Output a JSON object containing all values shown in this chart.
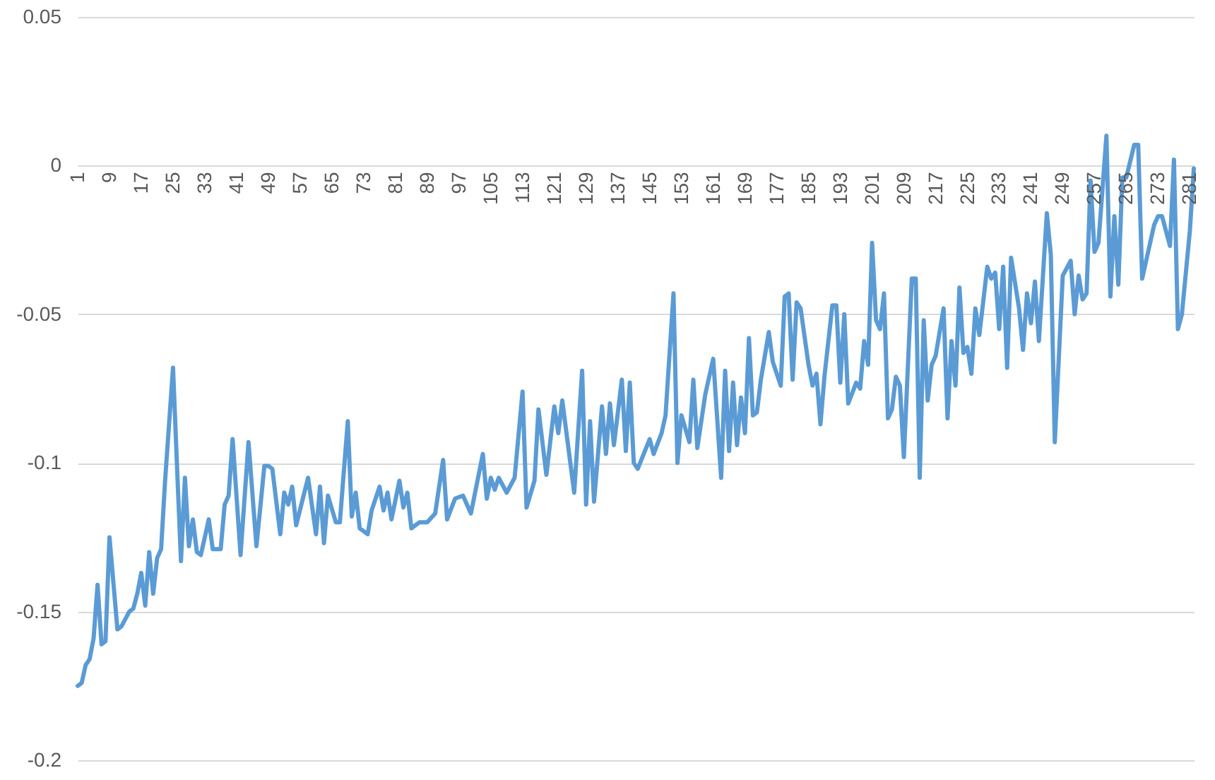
{
  "chart_data": {
    "type": "line",
    "grid": "y",
    "xlim": [
      1,
      282
    ],
    "xticks": [
      1,
      9,
      17,
      25,
      33,
      41,
      49,
      57,
      65,
      73,
      81,
      89,
      97,
      105,
      113,
      121,
      129,
      137,
      145,
      153,
      161,
      169,
      177,
      185,
      193,
      201,
      209,
      217,
      225,
      233,
      241,
      249,
      257,
      265,
      273,
      281
    ],
    "ylim": [
      -0.2,
      0.05
    ],
    "yticks": [
      -0.2,
      -0.15,
      -0.1,
      -0.05,
      0,
      0.05
    ],
    "x": [
      1,
      2,
      3,
      4,
      5,
      6,
      7,
      8,
      9,
      11,
      12,
      14,
      15,
      16,
      17,
      18,
      19,
      20,
      21,
      22,
      23,
      25,
      26,
      27,
      28,
      29,
      30,
      31,
      32,
      34,
      35,
      37,
      38,
      39,
      40,
      42,
      44,
      46,
      48,
      49,
      50,
      52,
      53,
      54,
      55,
      56,
      59,
      61,
      62,
      63,
      64,
      66,
      67,
      69,
      70,
      71,
      72,
      74,
      75,
      77,
      78,
      79,
      80,
      82,
      83,
      84,
      85,
      87,
      89,
      91,
      93,
      94,
      96,
      98,
      100,
      103,
      104,
      105,
      106,
      107,
      109,
      111,
      113,
      114,
      116,
      117,
      119,
      121,
      122,
      123,
      126,
      128,
      129,
      130,
      131,
      133,
      134,
      135,
      136,
      138,
      139,
      140,
      141,
      142,
      145,
      146,
      148,
      149,
      151,
      152,
      153,
      155,
      156,
      157,
      159,
      161,
      163,
      164,
      165,
      166,
      167,
      168,
      169,
      170,
      171,
      172,
      173,
      175,
      176,
      178,
      179,
      180,
      181,
      182,
      183,
      185,
      186,
      187,
      188,
      189,
      191,
      192,
      193,
      194,
      195,
      197,
      198,
      199,
      200,
      201,
      202,
      203,
      204,
      205,
      206,
      207,
      208,
      209,
      211,
      212,
      213,
      214,
      215,
      216,
      217,
      219,
      220,
      221,
      222,
      223,
      224,
      225,
      226,
      227,
      228,
      230,
      231,
      232,
      233,
      234,
      235,
      236,
      238,
      239,
      240,
      241,
      242,
      243,
      245,
      246,
      247,
      249,
      251,
      252,
      253,
      254,
      255,
      256,
      257,
      258,
      260,
      261,
      262,
      263,
      264,
      265,
      267,
      268,
      269,
      272,
      273,
      274,
      276,
      277,
      278,
      279,
      281,
      282
    ],
    "series": [
      {
        "color": "#5b9bd5",
        "values": [
          -0.175,
          -0.174,
          -0.168,
          -0.166,
          -0.159,
          -0.141,
          -0.161,
          -0.16,
          -0.125,
          -0.156,
          -0.155,
          -0.15,
          -0.149,
          -0.144,
          -0.137,
          -0.148,
          -0.13,
          -0.144,
          -0.132,
          -0.129,
          -0.106,
          -0.068,
          -0.101,
          -0.133,
          -0.105,
          -0.128,
          -0.119,
          -0.13,
          -0.131,
          -0.119,
          -0.129,
          -0.129,
          -0.114,
          -0.111,
          -0.092,
          -0.131,
          -0.093,
          -0.128,
          -0.101,
          -0.101,
          -0.102,
          -0.124,
          -0.11,
          -0.114,
          -0.108,
          -0.121,
          -0.105,
          -0.124,
          -0.108,
          -0.127,
          -0.111,
          -0.12,
          -0.12,
          -0.086,
          -0.118,
          -0.11,
          -0.122,
          -0.124,
          -0.116,
          -0.108,
          -0.116,
          -0.11,
          -0.119,
          -0.106,
          -0.115,
          -0.11,
          -0.122,
          -0.12,
          -0.12,
          -0.117,
          -0.099,
          -0.119,
          -0.112,
          -0.111,
          -0.117,
          -0.097,
          -0.112,
          -0.105,
          -0.109,
          -0.105,
          -0.11,
          -0.105,
          -0.076,
          -0.115,
          -0.106,
          -0.082,
          -0.104,
          -0.081,
          -0.09,
          -0.079,
          -0.11,
          -0.069,
          -0.114,
          -0.086,
          -0.113,
          -0.081,
          -0.097,
          -0.08,
          -0.094,
          -0.072,
          -0.096,
          -0.073,
          -0.1,
          -0.102,
          -0.092,
          -0.097,
          -0.09,
          -0.084,
          -0.043,
          -0.1,
          -0.084,
          -0.093,
          -0.072,
          -0.095,
          -0.077,
          -0.065,
          -0.105,
          -0.069,
          -0.096,
          -0.073,
          -0.094,
          -0.078,
          -0.09,
          -0.058,
          -0.084,
          -0.083,
          -0.072,
          -0.056,
          -0.066,
          -0.074,
          -0.044,
          -0.043,
          -0.072,
          -0.046,
          -0.048,
          -0.067,
          -0.074,
          -0.07,
          -0.087,
          -0.071,
          -0.047,
          -0.047,
          -0.073,
          -0.05,
          -0.08,
          -0.073,
          -0.075,
          -0.059,
          -0.067,
          -0.026,
          -0.052,
          -0.055,
          -0.043,
          -0.085,
          -0.082,
          -0.071,
          -0.074,
          -0.098,
          -0.038,
          -0.038,
          -0.105,
          -0.052,
          -0.079,
          -0.067,
          -0.064,
          -0.048,
          -0.085,
          -0.059,
          -0.074,
          -0.041,
          -0.063,
          -0.061,
          -0.07,
          -0.048,
          -0.057,
          -0.034,
          -0.038,
          -0.036,
          -0.055,
          -0.034,
          -0.068,
          -0.031,
          -0.048,
          -0.062,
          -0.043,
          -0.053,
          -0.039,
          -0.059,
          -0.016,
          -0.03,
          -0.093,
          -0.037,
          -0.032,
          -0.05,
          -0.037,
          -0.045,
          -0.043,
          -0.005,
          -0.029,
          -0.026,
          0.01,
          -0.044,
          -0.017,
          -0.04,
          -0.004,
          -0.004,
          0.007,
          0.007,
          -0.038,
          -0.02,
          -0.017,
          -0.017,
          -0.027,
          0.002,
          -0.055,
          -0.05,
          -0.022,
          -0.001
        ]
      }
    ]
  }
}
